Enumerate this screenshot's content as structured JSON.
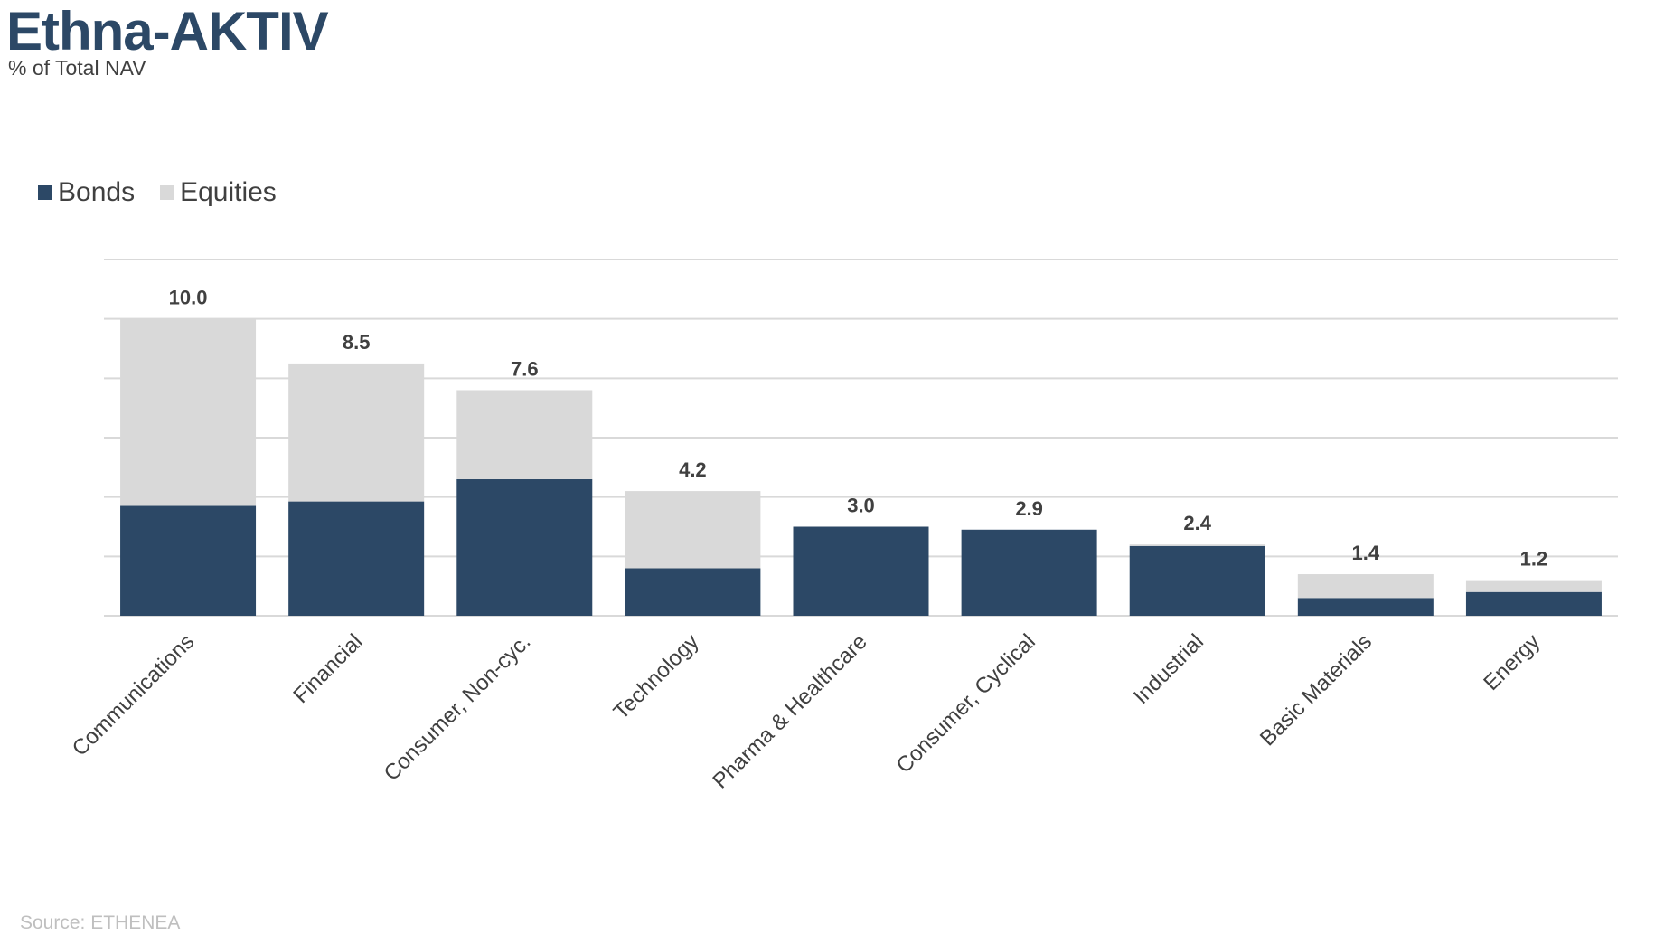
{
  "title": "Ethna-AKTIV",
  "subtitle": "% of Total NAV",
  "source": "Source: ETHENEA",
  "colors": {
    "bonds": "#2c4866",
    "equities": "#d9d9d9",
    "title": "#2c4866",
    "grid": "#d9d9d9",
    "text": "#404040"
  },
  "chart_data": {
    "type": "bar",
    "stacked": true,
    "categories": [
      "Communications",
      "Financial",
      "Consumer, Non-cyc.",
      "Technology",
      "Pharma & Healthcare",
      "Consumer, Cyclical",
      "Industrial",
      "Basic Materials",
      "Energy"
    ],
    "series": [
      {
        "name": "Bonds",
        "color": "#2c4866",
        "values": [
          3.7,
          3.85,
          4.6,
          1.6,
          3.0,
          2.9,
          2.35,
          0.6,
          0.8
        ]
      },
      {
        "name": "Equities",
        "color": "#d9d9d9",
        "values": [
          6.3,
          4.65,
          3.0,
          2.6,
          0.0,
          0.0,
          0.05,
          0.8,
          0.4
        ]
      }
    ],
    "totals": [
      "10.0",
      "8.5",
      "7.6",
      "4.2",
      "3.0",
      "2.9",
      "2.4",
      "1.4",
      "1.2"
    ],
    "ylim": [
      0,
      12
    ],
    "ytick_step": 2,
    "show_ytick_labels": false,
    "grid": true,
    "legend_position": "top-left"
  }
}
